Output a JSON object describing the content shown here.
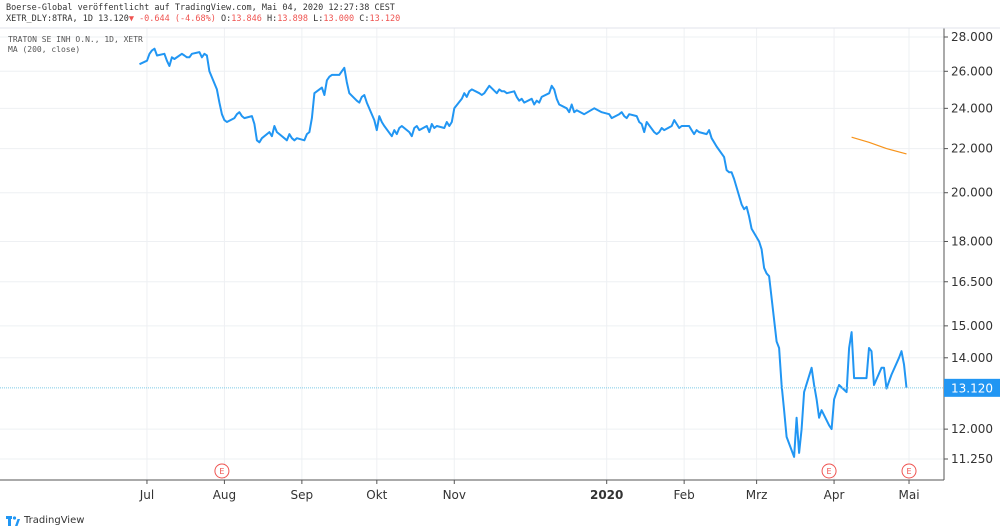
{
  "header": {
    "publisher_line": "Boerse-Global veröffentlicht auf TradingView.com, Mai 04, 2020 12:27:38 CEST",
    "symbol_line": "XETR_DLY:8TRA, 1D 13.120",
    "change_text": "▼ -0.644 (-4.68%)",
    "open_label": "O:",
    "open_value": "13.846",
    "high_label": "H:",
    "high_value": "13.898",
    "low_label": "L:",
    "low_value": "13.000",
    "close_label": "C:",
    "close_value": "13.120"
  },
  "legend": {
    "instrument": "TRATON SE INH O.N., 1D, XETR",
    "indicator": "MA (200, close)"
  },
  "footer": {
    "brand": "TradingView"
  },
  "colors": {
    "price_line": "#2196f3",
    "ma_line": "#f7931a",
    "last_price_badge": "#2196f3",
    "negative": "#ef5350",
    "grid": "#eef0f3",
    "earnings_marker": "#ef5350"
  },
  "chart_data": {
    "type": "line",
    "price_axis": {
      "ticks": [
        "28.000",
        "26.000",
        "24.000",
        "22.000",
        "20.000",
        "18.000",
        "16.500",
        "15.000",
        "14.000",
        "12.000",
        "11.250"
      ],
      "tick_values": [
        28.0,
        26.0,
        24.0,
        22.0,
        20.0,
        18.0,
        16.5,
        15.0,
        14.0,
        12.0,
        11.25
      ],
      "scale": "log"
    },
    "time_axis": {
      "labels": [
        "Jul",
        "Aug",
        "Sep",
        "Okt",
        "Nov",
        "2020",
        "Feb",
        "Mrz",
        "Apr",
        "Mai"
      ],
      "label_dates": [
        "2019-07-01",
        "2019-08-01",
        "2019-09-01",
        "2019-10-01",
        "2019-11-01",
        "2020-01-01",
        "2020-02-01",
        "2020-03-01",
        "2020-04-01",
        "2020-05-01"
      ],
      "bold_label": "2020"
    },
    "last_price": 13.12,
    "last_price_label": "13.120",
    "earnings_markers": [
      {
        "date": "2019-07-31",
        "label": "E"
      },
      {
        "date": "2020-03-30",
        "label": "E"
      },
      {
        "date": "2020-05-01",
        "label": "E"
      }
    ],
    "series": [
      {
        "values": [
          [
            "2019-06-28",
            26.4
          ],
          [
            "2019-07-01",
            26.6
          ],
          [
            "2019-07-02",
            27.0
          ],
          [
            "2019-07-03",
            27.2
          ],
          [
            "2019-07-04",
            27.3
          ],
          [
            "2019-07-05",
            26.9
          ],
          [
            "2019-07-08",
            27.0
          ],
          [
            "2019-07-09",
            26.6
          ],
          [
            "2019-07-10",
            26.3
          ],
          [
            "2019-07-11",
            26.8
          ],
          [
            "2019-07-12",
            26.7
          ],
          [
            "2019-07-15",
            27.0
          ],
          [
            "2019-07-16",
            26.9
          ],
          [
            "2019-07-17",
            26.8
          ],
          [
            "2019-07-18",
            26.8
          ],
          [
            "2019-07-19",
            27.0
          ],
          [
            "2019-07-22",
            27.1
          ],
          [
            "2019-07-23",
            26.8
          ],
          [
            "2019-07-24",
            27.0
          ],
          [
            "2019-07-25",
            26.9
          ],
          [
            "2019-07-26",
            26.0
          ],
          [
            "2019-07-29",
            25.0
          ],
          [
            "2019-07-30",
            24.3
          ],
          [
            "2019-07-31",
            23.7
          ],
          [
            "2019-08-01",
            23.4
          ],
          [
            "2019-08-02",
            23.3
          ],
          [
            "2019-08-05",
            23.5
          ],
          [
            "2019-08-06",
            23.7
          ],
          [
            "2019-08-07",
            23.8
          ],
          [
            "2019-08-08",
            23.6
          ],
          [
            "2019-08-09",
            23.5
          ],
          [
            "2019-08-12",
            23.6
          ],
          [
            "2019-08-13",
            23.2
          ],
          [
            "2019-08-14",
            22.4
          ],
          [
            "2019-08-15",
            22.3
          ],
          [
            "2019-08-16",
            22.5
          ],
          [
            "2019-08-19",
            22.8
          ],
          [
            "2019-08-20",
            22.6
          ],
          [
            "2019-08-21",
            23.1
          ],
          [
            "2019-08-22",
            22.8
          ],
          [
            "2019-08-23",
            22.7
          ],
          [
            "2019-08-26",
            22.4
          ],
          [
            "2019-08-27",
            22.7
          ],
          [
            "2019-08-28",
            22.5
          ],
          [
            "2019-08-29",
            22.4
          ],
          [
            "2019-08-30",
            22.5
          ],
          [
            "2019-09-02",
            22.4
          ],
          [
            "2019-09-03",
            22.7
          ],
          [
            "2019-09-04",
            22.8
          ],
          [
            "2019-09-05",
            23.5
          ],
          [
            "2019-09-06",
            24.8
          ],
          [
            "2019-09-09",
            25.1
          ],
          [
            "2019-09-10",
            24.7
          ],
          [
            "2019-09-11",
            25.5
          ],
          [
            "2019-09-12",
            25.7
          ],
          [
            "2019-09-13",
            25.8
          ],
          [
            "2019-09-16",
            25.8
          ],
          [
            "2019-09-17",
            26.0
          ],
          [
            "2019-09-18",
            26.2
          ],
          [
            "2019-09-19",
            25.4
          ],
          [
            "2019-09-20",
            24.8
          ],
          [
            "2019-09-23",
            24.4
          ],
          [
            "2019-09-24",
            24.3
          ],
          [
            "2019-09-25",
            24.6
          ],
          [
            "2019-09-26",
            24.7
          ],
          [
            "2019-09-27",
            24.3
          ],
          [
            "2019-09-30",
            23.4
          ],
          [
            "2019-10-01",
            22.9
          ],
          [
            "2019-10-02",
            23.6
          ],
          [
            "2019-10-03",
            23.3
          ],
          [
            "2019-10-04",
            23.1
          ],
          [
            "2019-10-07",
            22.6
          ],
          [
            "2019-10-08",
            22.9
          ],
          [
            "2019-10-09",
            22.7
          ],
          [
            "2019-10-10",
            23.0
          ],
          [
            "2019-10-11",
            23.1
          ],
          [
            "2019-10-14",
            22.8
          ],
          [
            "2019-10-15",
            22.6
          ],
          [
            "2019-10-16",
            23.0
          ],
          [
            "2019-10-17",
            23.1
          ],
          [
            "2019-10-18",
            22.9
          ],
          [
            "2019-10-21",
            23.1
          ],
          [
            "2019-10-22",
            22.8
          ],
          [
            "2019-10-23",
            23.2
          ],
          [
            "2019-10-24",
            23.0
          ],
          [
            "2019-10-25",
            23.1
          ],
          [
            "2019-10-28",
            23.0
          ],
          [
            "2019-10-29",
            23.3
          ],
          [
            "2019-10-30",
            23.1
          ],
          [
            "2019-10-31",
            23.3
          ],
          [
            "2019-11-01",
            24.0
          ],
          [
            "2019-11-04",
            24.5
          ],
          [
            "2019-11-05",
            24.8
          ],
          [
            "2019-11-06",
            24.6
          ],
          [
            "2019-11-07",
            24.9
          ],
          [
            "2019-11-08",
            25.0
          ],
          [
            "2019-11-11",
            24.8
          ],
          [
            "2019-11-12",
            24.7
          ],
          [
            "2019-11-13",
            24.8
          ],
          [
            "2019-11-14",
            25.0
          ],
          [
            "2019-11-15",
            25.2
          ],
          [
            "2019-11-18",
            24.8
          ],
          [
            "2019-11-19",
            25.0
          ],
          [
            "2019-11-20",
            24.9
          ],
          [
            "2019-11-21",
            24.9
          ],
          [
            "2019-11-22",
            24.8
          ],
          [
            "2019-11-25",
            24.9
          ],
          [
            "2019-11-26",
            24.6
          ],
          [
            "2019-11-27",
            24.4
          ],
          [
            "2019-11-28",
            24.5
          ],
          [
            "2019-11-29",
            24.3
          ],
          [
            "2019-12-02",
            24.5
          ],
          [
            "2019-12-03",
            24.2
          ],
          [
            "2019-12-04",
            24.4
          ],
          [
            "2019-12-05",
            24.3
          ],
          [
            "2019-12-06",
            24.6
          ],
          [
            "2019-12-09",
            24.8
          ],
          [
            "2019-12-10",
            25.2
          ],
          [
            "2019-12-11",
            25.0
          ],
          [
            "2019-12-12",
            24.5
          ],
          [
            "2019-12-13",
            24.2
          ],
          [
            "2019-12-16",
            24.0
          ],
          [
            "2019-12-17",
            23.8
          ],
          [
            "2019-12-18",
            24.2
          ],
          [
            "2019-12-19",
            23.8
          ],
          [
            "2019-12-20",
            23.9
          ],
          [
            "2019-12-23",
            23.7
          ],
          [
            "2019-12-27",
            24.0
          ],
          [
            "2019-12-30",
            23.8
          ],
          [
            "2020-01-02",
            23.7
          ],
          [
            "2020-01-03",
            23.5
          ],
          [
            "2020-01-06",
            23.7
          ],
          [
            "2020-01-07",
            23.8
          ],
          [
            "2020-01-08",
            23.6
          ],
          [
            "2020-01-09",
            23.5
          ],
          [
            "2020-01-10",
            23.7
          ],
          [
            "2020-01-13",
            23.6
          ],
          [
            "2020-01-14",
            23.3
          ],
          [
            "2020-01-15",
            23.2
          ],
          [
            "2020-01-16",
            22.8
          ],
          [
            "2020-01-17",
            23.3
          ],
          [
            "2020-01-20",
            22.8
          ],
          [
            "2020-01-21",
            22.7
          ],
          [
            "2020-01-22",
            22.8
          ],
          [
            "2020-01-23",
            23.0
          ],
          [
            "2020-01-24",
            22.9
          ],
          [
            "2020-01-27",
            23.1
          ],
          [
            "2020-01-28",
            23.4
          ],
          [
            "2020-01-29",
            23.2
          ],
          [
            "2020-01-30",
            23.0
          ],
          [
            "2020-01-31",
            23.1
          ],
          [
            "2020-02-03",
            23.1
          ],
          [
            "2020-02-04",
            22.9
          ],
          [
            "2020-02-05",
            22.7
          ],
          [
            "2020-02-06",
            22.9
          ],
          [
            "2020-02-07",
            22.8
          ],
          [
            "2020-02-10",
            22.7
          ],
          [
            "2020-02-11",
            22.9
          ],
          [
            "2020-02-12",
            22.5
          ],
          [
            "2020-02-13",
            22.3
          ],
          [
            "2020-02-14",
            22.1
          ],
          [
            "2020-02-17",
            21.6
          ],
          [
            "2020-02-18",
            21.0
          ],
          [
            "2020-02-19",
            20.9
          ],
          [
            "2020-02-20",
            20.9
          ],
          [
            "2020-02-21",
            20.6
          ],
          [
            "2020-02-24",
            19.5
          ],
          [
            "2020-02-25",
            19.3
          ],
          [
            "2020-02-26",
            19.4
          ],
          [
            "2020-02-27",
            19.0
          ],
          [
            "2020-02-28",
            18.5
          ],
          [
            "2020-03-02",
            18.0
          ],
          [
            "2020-03-03",
            17.7
          ],
          [
            "2020-03-04",
            17.0
          ],
          [
            "2020-03-05",
            16.8
          ],
          [
            "2020-03-06",
            16.7
          ],
          [
            "2020-03-09",
            14.5
          ],
          [
            "2020-03-10",
            14.3
          ],
          [
            "2020-03-11",
            13.2
          ],
          [
            "2020-03-12",
            12.5
          ],
          [
            "2020-03-13",
            11.8
          ],
          [
            "2020-03-16",
            11.3
          ],
          [
            "2020-03-17",
            12.3
          ],
          [
            "2020-03-18",
            11.4
          ],
          [
            "2020-03-19",
            12.0
          ],
          [
            "2020-03-20",
            13.0
          ],
          [
            "2020-03-23",
            13.7
          ],
          [
            "2020-03-24",
            13.2
          ],
          [
            "2020-03-25",
            12.8
          ],
          [
            "2020-03-26",
            12.3
          ],
          [
            "2020-03-27",
            12.5
          ],
          [
            "2020-03-30",
            12.1
          ],
          [
            "2020-03-31",
            12.0
          ],
          [
            "2020-04-01",
            12.8
          ],
          [
            "2020-04-02",
            13.0
          ],
          [
            "2020-04-03",
            13.2
          ],
          [
            "2020-04-06",
            13.0
          ],
          [
            "2020-04-07",
            14.3
          ],
          [
            "2020-04-08",
            14.8
          ],
          [
            "2020-04-09",
            13.4
          ],
          [
            "2020-04-14",
            13.4
          ],
          [
            "2020-04-15",
            14.3
          ],
          [
            "2020-04-16",
            14.2
          ],
          [
            "2020-04-17",
            13.2
          ],
          [
            "2020-04-20",
            13.7
          ],
          [
            "2020-04-21",
            13.7
          ],
          [
            "2020-04-22",
            13.1
          ],
          [
            "2020-04-23",
            13.3
          ],
          [
            "2020-04-24",
            13.5
          ],
          [
            "2020-04-27",
            14.0
          ],
          [
            "2020-04-28",
            14.2
          ],
          [
            "2020-04-29",
            13.8
          ],
          [
            "2020-04-30",
            13.12
          ]
        ]
      },
      {
        "values": [
          [
            "2020-04-08",
            22.55
          ],
          [
            "2020-04-15",
            22.3
          ],
          [
            "2020-04-22",
            22.0
          ],
          [
            "2020-04-30",
            21.75
          ]
        ]
      }
    ]
  }
}
